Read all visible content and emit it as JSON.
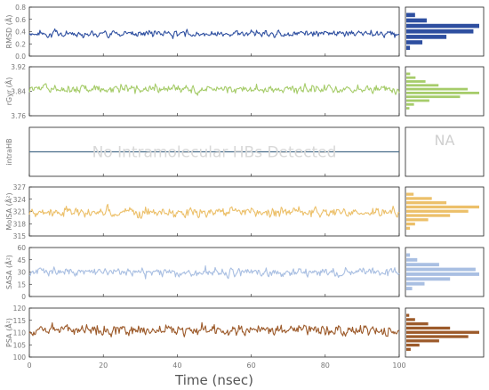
{
  "chart_data": {
    "type": "line",
    "xlabel": "Time (nsec)",
    "xlim": [
      0,
      100
    ],
    "x_ticks": [
      "0",
      "20",
      "40",
      "60",
      "80",
      "100"
    ],
    "panels": [
      {
        "id": "rmsd",
        "ylabel": "RMSD (Å)",
        "ylim": [
          0,
          0.8
        ],
        "y_ticks": [
          "0.8",
          "0.6",
          "0.4",
          "0.2",
          "0.0"
        ],
        "color": "#2e4fa0",
        "mean": 0.37,
        "spread": 0.065,
        "hist_bins": [
          0.5,
          0.4,
          0.3,
          0.2
        ],
        "hist_counts": [
          12,
          28,
          100,
          92,
          55,
          22,
          5
        ]
      },
      {
        "id": "rgyr",
        "ylabel": "rGyr (Å)",
        "ylim": [
          3.74,
          3.95
        ],
        "y_ticks": [
          "3.92",
          "3.84",
          "3.76"
        ],
        "color": "#a6cc6a",
        "mean": 3.855,
        "spread": 0.022,
        "hist_counts": [
          5,
          12,
          25,
          42,
          80,
          95,
          70,
          30,
          10,
          4
        ]
      },
      {
        "id": "intrahb",
        "ylabel": "intraHB",
        "ylim": [
          -1,
          1
        ],
        "y_ticks": [],
        "color": "#4a6e8a",
        "note": "No Intramolecular HBs Detected",
        "hist_note": "NA"
      },
      {
        "id": "molsa",
        "ylabel": "MolSA (Å²)",
        "ylim": [
          315,
          327
        ],
        "y_ticks": [
          "327",
          "324",
          "321",
          "318",
          "315"
        ],
        "color": "#ecc06a",
        "mean": 320.8,
        "spread": 1.4,
        "hist_counts": [
          10,
          35,
          55,
          100,
          85,
          60,
          30,
          12,
          5
        ]
      },
      {
        "id": "sasa",
        "ylabel": "SASA (Å²)",
        "ylim": [
          0,
          60
        ],
        "y_ticks": [
          "60",
          "45",
          "30",
          "15",
          "0"
        ],
        "color": "#a9bfe2",
        "mean": 30,
        "spread": 6.5,
        "hist_counts": [
          5,
          15,
          45,
          95,
          100,
          60,
          25,
          8
        ]
      },
      {
        "id": "psa",
        "ylabel": "PSA (Å²)",
        "ylim": [
          100,
          120
        ],
        "y_ticks": [
          "120",
          "115",
          "110",
          "105",
          "100"
        ],
        "color": "#9c5a2a",
        "mean": 111,
        "spread": 2.6,
        "hist_counts": [
          4,
          12,
          30,
          60,
          100,
          85,
          45,
          18,
          6
        ]
      }
    ]
  }
}
